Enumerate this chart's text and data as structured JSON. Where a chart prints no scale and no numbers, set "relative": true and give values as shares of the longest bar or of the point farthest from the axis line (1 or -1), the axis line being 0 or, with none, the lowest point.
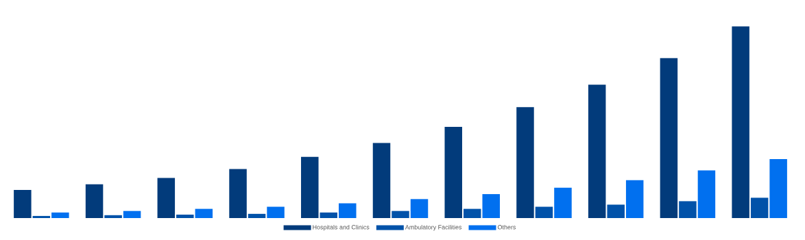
{
  "chart_data": {
    "type": "bar",
    "relative": true,
    "legend": "bottom",
    "categories": [
      null,
      null,
      null,
      null,
      null,
      null,
      null,
      null,
      null,
      null,
      null
    ],
    "series": [
      {
        "name": "Hospitals and Clinics",
        "color": "#023b7b",
        "values": [
          0.147,
          0.176,
          0.209,
          0.256,
          0.319,
          0.392,
          0.476,
          0.579,
          0.696,
          0.835,
          1
        ]
      },
      {
        "name": "Ambulatory Facilities",
        "color": "#0152a9",
        "values": [
          0.011,
          0.015,
          0.018,
          0.022,
          0.029,
          0.037,
          0.048,
          0.059,
          0.07,
          0.088,
          0.106
        ]
      },
      {
        "name": "Others",
        "color": "#0170ef",
        "values": [
          0.029,
          0.037,
          0.048,
          0.059,
          0.077,
          0.099,
          0.125,
          0.158,
          0.198,
          0.249,
          0.308
        ]
      }
    ]
  }
}
